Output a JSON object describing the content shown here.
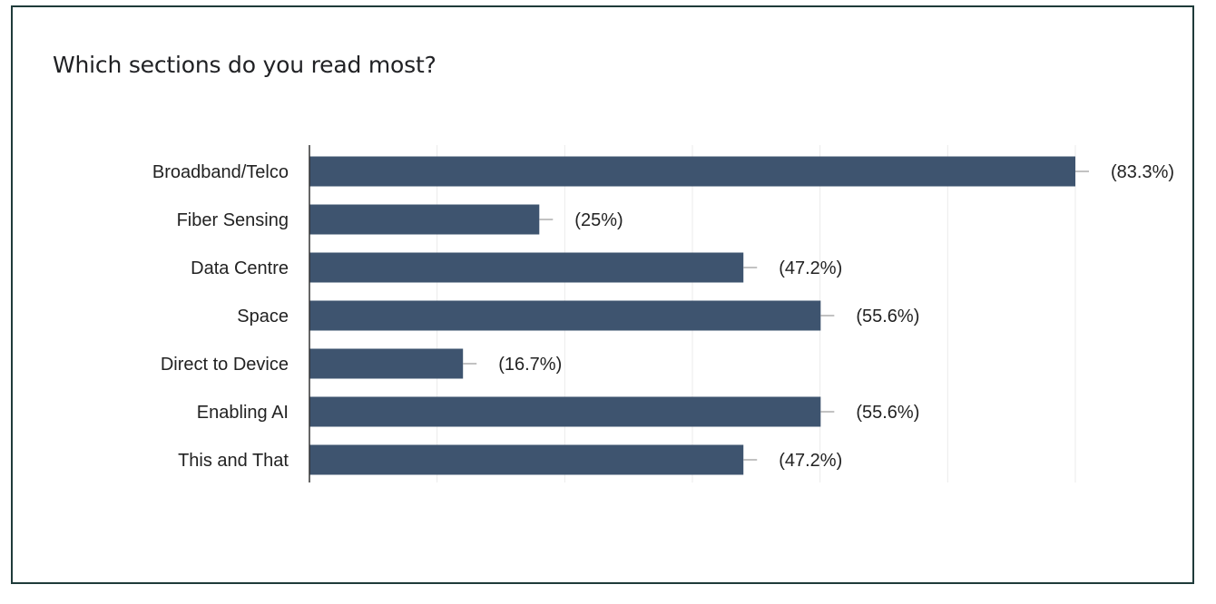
{
  "page": {
    "title": "Which sections do you read most?"
  },
  "colors": {
    "bar": "#3e546f",
    "grid": "#ebebeb",
    "axis": "#333333",
    "whisker": "#999999",
    "border": "#1f3b3a"
  },
  "chart_data": {
    "type": "bar",
    "orientation": "horizontal",
    "title": "Which sections do you read most?",
    "categories": [
      "Broadband/Telco",
      "Fiber Sensing",
      "Data Centre",
      "Space",
      "Direct to Device",
      "Enabling AI",
      "This and That"
    ],
    "values": [
      83.3,
      25,
      47.2,
      55.6,
      16.7,
      55.6,
      47.2
    ],
    "value_labels": [
      "(83.3%)",
      "(25%)",
      "(47.2%)",
      "(55.6%)",
      "(16.7%)",
      "(55.6%)",
      "(47.2%)"
    ],
    "xlim": [
      0,
      83.3
    ],
    "grid": true,
    "legend": "none",
    "xlabel": "",
    "ylabel": ""
  }
}
